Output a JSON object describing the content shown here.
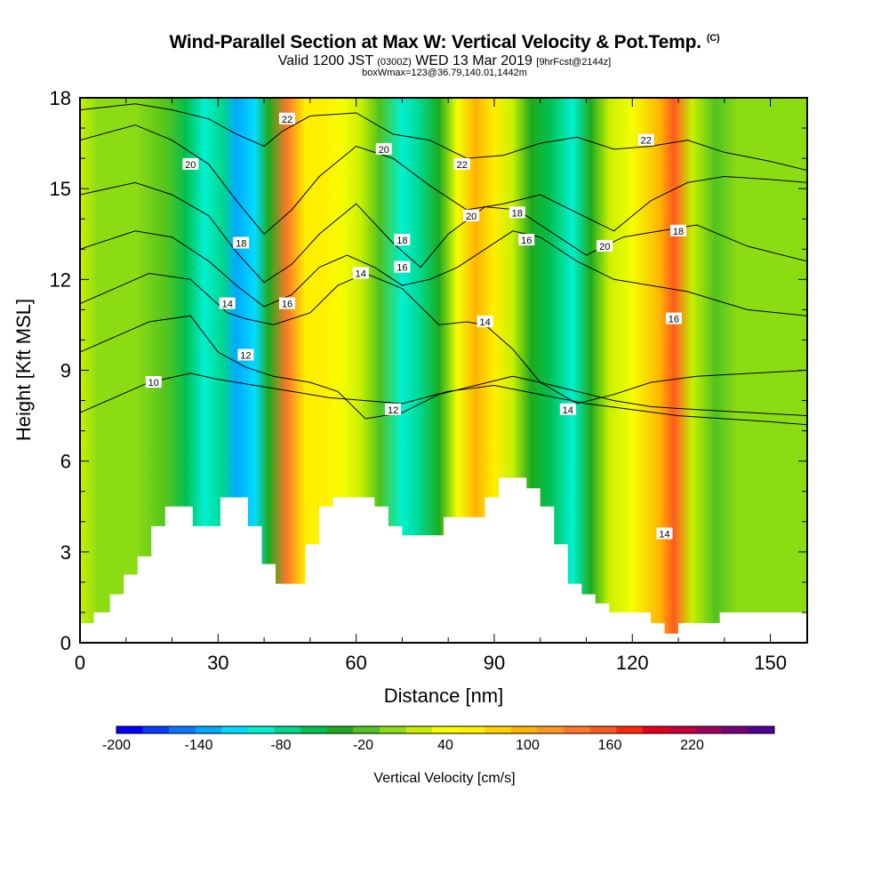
{
  "chart_data": {
    "type": "heatmap",
    "title": "Wind-Parallel Section at Max W: Vertical Velocity & Pot.Temp.",
    "copyright": "(C)",
    "subtitle": {
      "main": "Valid 1200 JST",
      "utc": "(0300Z)",
      "date": "WED 13 Mar 2019",
      "fcst": "[9hrFcst@2144z]"
    },
    "subtitle2": "boxWmax=123@36.79,140.01,1442m",
    "xlabel": "Distance [nm]",
    "ylabel": "Height [Kft MSL]",
    "xlim": [
      0,
      158
    ],
    "ylim": [
      0,
      18
    ],
    "x_ticks": [
      0,
      30,
      60,
      90,
      120,
      150
    ],
    "y_ticks": [
      0,
      3,
      6,
      9,
      12,
      15,
      18
    ],
    "colorbar": {
      "label": "Vertical Velocity [cm/s]",
      "range": [
        -200,
        260
      ],
      "step": 20,
      "tick_labels": [
        -200,
        -140,
        -80,
        -20,
        40,
        100,
        160,
        220
      ],
      "colors": [
        "#0000ff",
        "#0a3cff",
        "#0a78ff",
        "#00aaff",
        "#00dcff",
        "#00f0d2",
        "#00d78c",
        "#00c050",
        "#1eaa1e",
        "#50c31e",
        "#8cdc14",
        "#c8f000",
        "#f5ff00",
        "#fff000",
        "#ffd200",
        "#ffb400",
        "#ff961e",
        "#ff7828",
        "#ff5a1e",
        "#ff280a",
        "#e6001e",
        "#c8003c",
        "#a0005a",
        "#780078",
        "#500096"
      ]
    },
    "vertical_velocity_bands": [
      {
        "x": 0,
        "w": 25
      },
      {
        "x": 4,
        "w": 10
      },
      {
        "x": 12,
        "w": 15
      },
      {
        "x": 19,
        "w": -20
      },
      {
        "x": 23,
        "w": -50
      },
      {
        "x": 27,
        "w": -90
      },
      {
        "x": 31,
        "w": -70
      },
      {
        "x": 34,
        "w": -140
      },
      {
        "x": 38,
        "w": -110
      },
      {
        "x": 41,
        "w": -30
      },
      {
        "x": 45,
        "w": 140
      },
      {
        "x": 49,
        "w": 70
      },
      {
        "x": 53,
        "w": 60
      },
      {
        "x": 57,
        "w": 40
      },
      {
        "x": 61,
        "w": 25
      },
      {
        "x": 65,
        "w": -10
      },
      {
        "x": 70,
        "w": -100
      },
      {
        "x": 74,
        "w": -70
      },
      {
        "x": 78,
        "w": -30
      },
      {
        "x": 82,
        "w": 50
      },
      {
        "x": 86,
        "w": 110
      },
      {
        "x": 90,
        "w": 60
      },
      {
        "x": 94,
        "w": 20
      },
      {
        "x": 98,
        "w": -30
      },
      {
        "x": 102,
        "w": -50
      },
      {
        "x": 107,
        "w": -90
      },
      {
        "x": 111,
        "w": -40
      },
      {
        "x": 115,
        "w": 20
      },
      {
        "x": 120,
        "w": 50
      },
      {
        "x": 126,
        "w": 100
      },
      {
        "x": 129,
        "w": 170
      },
      {
        "x": 133,
        "w": 30
      },
      {
        "x": 138,
        "w": -5
      },
      {
        "x": 143,
        "w": 10
      },
      {
        "x": 150,
        "w": 0
      },
      {
        "x": 158,
        "w": 15
      }
    ],
    "terrain": [
      {
        "x": 0,
        "y": 0.65
      },
      {
        "x": 3,
        "y": 1.0
      },
      {
        "x": 6.5,
        "y": 1.6
      },
      {
        "x": 9.5,
        "y": 2.25
      },
      {
        "x": 12.5,
        "y": 2.85
      },
      {
        "x": 15.5,
        "y": 3.85
      },
      {
        "x": 18.5,
        "y": 4.5
      },
      {
        "x": 24.5,
        "y": 3.85
      },
      {
        "x": 30.5,
        "y": 4.8
      },
      {
        "x": 36.5,
        "y": 3.85
      },
      {
        "x": 39.5,
        "y": 2.6
      },
      {
        "x": 42.5,
        "y": 1.95
      },
      {
        "x": 49,
        "y": 3.25
      },
      {
        "x": 52,
        "y": 4.5
      },
      {
        "x": 55,
        "y": 4.8
      },
      {
        "x": 64,
        "y": 4.5
      },
      {
        "x": 67,
        "y": 3.85
      },
      {
        "x": 70,
        "y": 3.55
      },
      {
        "x": 79,
        "y": 4.15
      },
      {
        "x": 88,
        "y": 4.8
      },
      {
        "x": 91,
        "y": 5.45
      },
      {
        "x": 97,
        "y": 5.1
      },
      {
        "x": 100,
        "y": 4.5
      },
      {
        "x": 103,
        "y": 3.25
      },
      {
        "x": 106,
        "y": 1.95
      },
      {
        "x": 109,
        "y": 1.6
      },
      {
        "x": 112,
        "y": 1.3
      },
      {
        "x": 115,
        "y": 1.0
      },
      {
        "x": 124,
        "y": 0.65
      },
      {
        "x": 127,
        "y": 0.3
      },
      {
        "x": 130,
        "y": 0.65
      },
      {
        "x": 136,
        "y": 0.65
      },
      {
        "x": 139,
        "y": 1.0
      },
      {
        "x": 158,
        "y": 1.0
      }
    ],
    "potential_temperature_contours": [
      {
        "level": 10,
        "points": [
          [
            0,
            7.6
          ],
          [
            15,
            8.6
          ],
          [
            24,
            8.9
          ],
          [
            30,
            8.7
          ],
          [
            38,
            8.5
          ],
          [
            46,
            8.3
          ],
          [
            54,
            8.1
          ],
          [
            62,
            8.0
          ],
          [
            70,
            7.9
          ],
          [
            80,
            8.3
          ],
          [
            90,
            8.5
          ],
          [
            100,
            8.2
          ],
          [
            110,
            7.9
          ],
          [
            120,
            7.7
          ],
          [
            130,
            7.5
          ],
          [
            140,
            7.4
          ],
          [
            150,
            7.3
          ],
          [
            158,
            7.2
          ]
        ]
      },
      {
        "level": 12,
        "points": [
          [
            0,
            9.6
          ],
          [
            15,
            10.6
          ],
          [
            24,
            10.8
          ],
          [
            30,
            9.6
          ],
          [
            36,
            9.1
          ],
          [
            42,
            8.8
          ],
          [
            50,
            8.6
          ],
          [
            56,
            8.3
          ],
          [
            62,
            7.4
          ],
          [
            70,
            7.6
          ],
          [
            78,
            8.2
          ],
          [
            86,
            8.5
          ],
          [
            94,
            8.8
          ],
          [
            100,
            8.6
          ],
          [
            108,
            8.3
          ],
          [
            116,
            8.0
          ],
          [
            124,
            7.8
          ],
          [
            134,
            7.7
          ],
          [
            146,
            7.6
          ],
          [
            158,
            7.5
          ]
        ]
      },
      {
        "level": 14,
        "points": [
          [
            0,
            11.2
          ],
          [
            15,
            12.2
          ],
          [
            24,
            12.0
          ],
          [
            32,
            10.9
          ],
          [
            36,
            10.7
          ],
          [
            42,
            10.5
          ],
          [
            50,
            10.9
          ],
          [
            56,
            11.8
          ],
          [
            62,
            12.2
          ],
          [
            70,
            11.7
          ],
          [
            78,
            10.5
          ],
          [
            84,
            10.6
          ],
          [
            88,
            10.5
          ],
          [
            94,
            9.7
          ],
          [
            100,
            8.6
          ],
          [
            108,
            7.9
          ],
          [
            116,
            8.2
          ],
          [
            124,
            8.6
          ],
          [
            134,
            8.8
          ],
          [
            146,
            8.9
          ],
          [
            158,
            9.0
          ]
        ]
      },
      {
        "level": 16,
        "points": [
          [
            0,
            13.0
          ],
          [
            12,
            13.6
          ],
          [
            20,
            13.4
          ],
          [
            28,
            12.6
          ],
          [
            34,
            11.8
          ],
          [
            40,
            11.1
          ],
          [
            46,
            11.5
          ],
          [
            52,
            12.4
          ],
          [
            58,
            12.8
          ],
          [
            64,
            12.4
          ],
          [
            70,
            11.8
          ],
          [
            76,
            12.0
          ],
          [
            82,
            12.4
          ],
          [
            88,
            13.0
          ],
          [
            94,
            13.6
          ],
          [
            100,
            13.4
          ],
          [
            108,
            12.6
          ],
          [
            116,
            12.0
          ],
          [
            124,
            11.8
          ],
          [
            132,
            11.6
          ],
          [
            145,
            11.0
          ],
          [
            158,
            10.8
          ]
        ]
      },
      {
        "level": 18,
        "points": [
          [
            0,
            14.8
          ],
          [
            12,
            15.2
          ],
          [
            20,
            14.8
          ],
          [
            28,
            14.1
          ],
          [
            34,
            12.9
          ],
          [
            40,
            11.9
          ],
          [
            46,
            12.5
          ],
          [
            52,
            13.5
          ],
          [
            60,
            14.5
          ],
          [
            68,
            13.2
          ],
          [
            74,
            12.4
          ],
          [
            80,
            13.5
          ],
          [
            88,
            14.4
          ],
          [
            95,
            14.3
          ],
          [
            102,
            13.6
          ],
          [
            110,
            12.8
          ],
          [
            118,
            13.4
          ],
          [
            126,
            13.6
          ],
          [
            134,
            13.8
          ],
          [
            145,
            13.1
          ],
          [
            158,
            12.6
          ]
        ]
      },
      {
        "level": 20,
        "points": [
          [
            0,
            16.6
          ],
          [
            12,
            17.1
          ],
          [
            20,
            16.6
          ],
          [
            28,
            15.8
          ],
          [
            34,
            14.6
          ],
          [
            40,
            13.5
          ],
          [
            46,
            14.3
          ],
          [
            52,
            15.4
          ],
          [
            60,
            16.4
          ],
          [
            68,
            16.0
          ],
          [
            76,
            15.1
          ],
          [
            84,
            14.3
          ],
          [
            92,
            14.5
          ],
          [
            100,
            14.8
          ],
          [
            108,
            14.2
          ],
          [
            116,
            13.6
          ],
          [
            124,
            14.6
          ],
          [
            132,
            15.2
          ],
          [
            140,
            15.4
          ],
          [
            150,
            15.3
          ],
          [
            158,
            15.2
          ]
        ]
      },
      {
        "level": 22,
        "points": [
          [
            0,
            17.6
          ],
          [
            12,
            17.8
          ],
          [
            20,
            17.6
          ],
          [
            28,
            17.3
          ],
          [
            34,
            16.8
          ],
          [
            40,
            16.4
          ],
          [
            44,
            16.9
          ],
          [
            50,
            17.4
          ],
          [
            60,
            17.5
          ],
          [
            68,
            16.8
          ],
          [
            76,
            16.6
          ],
          [
            84,
            16.0
          ],
          [
            92,
            16.1
          ],
          [
            100,
            16.5
          ],
          [
            108,
            16.7
          ],
          [
            116,
            16.3
          ],
          [
            124,
            16.4
          ],
          [
            132,
            16.6
          ],
          [
            140,
            16.2
          ],
          [
            150,
            15.9
          ],
          [
            158,
            15.6
          ]
        ]
      }
    ],
    "contour_labels": [
      {
        "text": "10",
        "x": 16,
        "y": 8.6
      },
      {
        "text": "12",
        "x": 36,
        "y": 9.5
      },
      {
        "text": "14",
        "x": 32,
        "y": 11.2
      },
      {
        "text": "16",
        "x": 45,
        "y": 11.2
      },
      {
        "text": "18",
        "x": 35,
        "y": 13.2
      },
      {
        "text": "20",
        "x": 24,
        "y": 15.8
      },
      {
        "text": "22",
        "x": 45,
        "y": 17.3
      },
      {
        "text": "14",
        "x": 61,
        "y": 12.2
      },
      {
        "text": "18",
        "x": 70,
        "y": 13.3
      },
      {
        "text": "16",
        "x": 70,
        "y": 12.4
      },
      {
        "text": "20",
        "x": 66,
        "y": 16.3
      },
      {
        "text": "12",
        "x": 68,
        "y": 7.7
      },
      {
        "text": "22",
        "x": 83,
        "y": 15.8
      },
      {
        "text": "20",
        "x": 85,
        "y": 14.1
      },
      {
        "text": "18",
        "x": 95,
        "y": 14.2
      },
      {
        "text": "16",
        "x": 97,
        "y": 13.3
      },
      {
        "text": "14",
        "x": 88,
        "y": 10.6
      },
      {
        "text": "14",
        "x": 106,
        "y": 7.7
      },
      {
        "text": "20",
        "x": 114,
        "y": 13.1
      },
      {
        "text": "22",
        "x": 123,
        "y": 16.6
      },
      {
        "text": "18",
        "x": 130,
        "y": 13.6
      },
      {
        "text": "16",
        "x": 129,
        "y": 10.7
      },
      {
        "text": "14",
        "x": 127,
        "y": 3.6
      }
    ]
  }
}
